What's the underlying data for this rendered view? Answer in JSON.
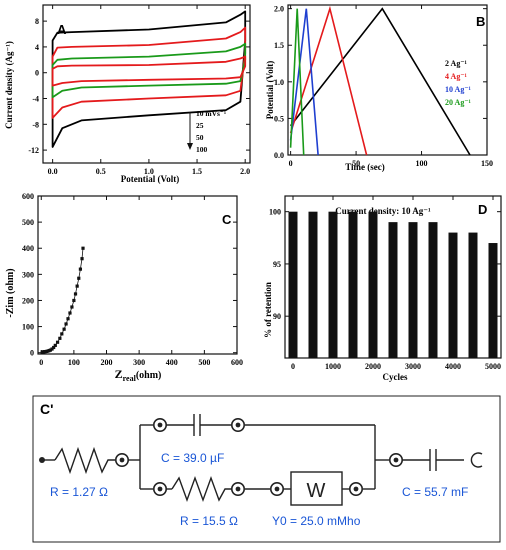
{
  "chart_data": [
    {
      "panel": "A",
      "type": "line",
      "xlabel": "Potential (Volt)",
      "ylabel": "Current density (Ag⁻¹)",
      "xlim": [
        -0.1,
        2.05
      ],
      "ylim": [
        -14,
        10.5
      ],
      "xticks": [
        "0.0",
        "0.5",
        "1.0",
        "1.5",
        "2.0"
      ],
      "xtick_values": [
        0,
        0.5,
        1.0,
        1.5,
        2.0
      ],
      "yticks": [
        "8",
        "4",
        "0",
        "-4",
        "-8",
        "-12"
      ],
      "ytick_values": [
        8,
        4,
        0,
        -4,
        -8,
        -12
      ],
      "legend_title": "10 mVs⁻¹",
      "legend": [
        "10 mVs⁻¹",
        "25",
        "50",
        "100"
      ],
      "series": [
        {
          "name": "100",
          "color": "#000000",
          "upper": [
            [
              0,
              5.0
            ],
            [
              0.05,
              6.2
            ],
            [
              0.2,
              6.3
            ],
            [
              1.0,
              6.7
            ],
            [
              1.8,
              7.8
            ],
            [
              1.95,
              9.0
            ],
            [
              2.0,
              9.5
            ]
          ],
          "lower": [
            [
              2.0,
              5.0
            ],
            [
              1.95,
              -4.5
            ],
            [
              1.8,
              -5.8
            ],
            [
              1.0,
              -6.6
            ],
            [
              0.3,
              -7.4
            ],
            [
              0.1,
              -8.6
            ],
            [
              0.0,
              -11.5
            ]
          ]
        },
        {
          "name": "50",
          "color": "#e41a1c",
          "upper": [
            [
              0,
              2.5
            ],
            [
              0.05,
              3.9
            ],
            [
              0.2,
              4.0
            ],
            [
              1.0,
              4.3
            ],
            [
              1.8,
              5.3
            ],
            [
              1.95,
              6.3
            ],
            [
              2.0,
              7.0
            ]
          ],
          "lower": [
            [
              2.0,
              3.0
            ],
            [
              1.95,
              -2.8
            ],
            [
              1.8,
              -3.5
            ],
            [
              1.0,
              -4.0
            ],
            [
              0.3,
              -4.5
            ],
            [
              0.1,
              -5.4
            ],
            [
              0.0,
              -7.0
            ]
          ]
        },
        {
          "name": "25",
          "color": "#1a9a1a",
          "upper": [
            [
              0,
              1.2
            ],
            [
              0.05,
              2.0
            ],
            [
              0.2,
              2.2
            ],
            [
              1.0,
              2.5
            ],
            [
              1.8,
              3.3
            ],
            [
              1.95,
              4.0
            ],
            [
              2.0,
              4.5
            ]
          ],
          "lower": [
            [
              2.0,
              2.0
            ],
            [
              1.95,
              -1.3
            ],
            [
              1.8,
              -1.7
            ],
            [
              1.0,
              -2.0
            ],
            [
              0.3,
              -2.3
            ],
            [
              0.1,
              -2.8
            ],
            [
              0.0,
              -3.8
            ]
          ]
        },
        {
          "name": "10 mVs⁻¹",
          "color": "#e41a1c",
          "upper": [
            [
              0,
              0.6
            ],
            [
              0.05,
              1.0
            ],
            [
              0.2,
              1.1
            ],
            [
              1.0,
              1.2
            ],
            [
              1.8,
              1.7
            ],
            [
              1.95,
              2.2
            ],
            [
              2.0,
              2.5
            ]
          ],
          "lower": [
            [
              2.0,
              1.0
            ],
            [
              1.95,
              -0.7
            ],
            [
              1.8,
              -0.9
            ],
            [
              1.0,
              -1.1
            ],
            [
              0.3,
              -1.3
            ],
            [
              0.1,
              -1.6
            ],
            [
              0.0,
              -2.0
            ]
          ]
        }
      ]
    },
    {
      "panel": "B",
      "type": "line",
      "xlabel": "Time (sec)",
      "ylabel": "Potential (Volt)",
      "xlim": [
        -2,
        150
      ],
      "ylim": [
        0,
        2.05
      ],
      "xticks": [
        "0",
        "50",
        "100",
        "150"
      ],
      "xtick_values": [
        0,
        50,
        100,
        150
      ],
      "yticks": [
        "2.0",
        "1.5",
        "1.0",
        "0.5",
        "0.0"
      ],
      "ytick_values": [
        2.0,
        1.5,
        1.0,
        0.5,
        0.0
      ],
      "legend": [
        "2 Ag⁻¹",
        "4 Ag⁻¹",
        "10 Ag⁻¹",
        "20 Ag⁻¹"
      ],
      "series": [
        {
          "name": "2 Ag⁻¹",
          "color": "#000000",
          "points": [
            [
              0,
              0.4
            ],
            [
              70,
              2.0
            ],
            [
              137,
              0.0
            ]
          ]
        },
        {
          "name": "4 Ag⁻¹",
          "color": "#e41a1c",
          "points": [
            [
              0,
              0.3
            ],
            [
              30,
              2.0
            ],
            [
              58,
              0.0
            ]
          ]
        },
        {
          "name": "10 Ag⁻¹",
          "color": "#1f3fd0",
          "points": [
            [
              0,
              0.2
            ],
            [
              12,
              2.0
            ],
            [
              21,
              0.0
            ]
          ]
        },
        {
          "name": "20 Ag⁻¹",
          "color": "#1a9a1a",
          "points": [
            [
              0,
              0.1
            ],
            [
              5,
              2.0
            ],
            [
              10,
              0.0
            ]
          ]
        }
      ]
    },
    {
      "panel": "C",
      "type": "scatter",
      "xlabel": "Z",
      "xlabel_sub": "real",
      "xlabel_unit": "(ohm)",
      "ylabel": "-Zim (ohm)",
      "xlim": [
        -10,
        600
      ],
      "ylim": [
        -5,
        600
      ],
      "xticks": [
        "0",
        "100",
        "200",
        "300",
        "400",
        "500",
        "600"
      ],
      "xtick_values": [
        0,
        100,
        200,
        300,
        400,
        500,
        600
      ],
      "yticks": [
        "0",
        "100",
        "200",
        "300",
        "400",
        "500",
        "600"
      ],
      "ytick_values": [
        0,
        100,
        200,
        300,
        400,
        500,
        600
      ],
      "points": [
        [
          3,
          2
        ],
        [
          6,
          3
        ],
        [
          9,
          4
        ],
        [
          12,
          4
        ],
        [
          16,
          5
        ],
        [
          20,
          6
        ],
        [
          24,
          8
        ],
        [
          28,
          10
        ],
        [
          33,
          14
        ],
        [
          38,
          20
        ],
        [
          43,
          28
        ],
        [
          50,
          40
        ],
        [
          57,
          55
        ],
        [
          63,
          72
        ],
        [
          70,
          90
        ],
        [
          76,
          110
        ],
        [
          82,
          130
        ],
        [
          88,
          152
        ],
        [
          94,
          175
        ],
        [
          100,
          200
        ],
        [
          105,
          225
        ],
        [
          110,
          255
        ],
        [
          115,
          285
        ],
        [
          120,
          320
        ],
        [
          125,
          360
        ],
        [
          128,
          400
        ]
      ]
    },
    {
      "panel": "D",
      "type": "bar",
      "title": "Current density: 10 Ag⁻¹",
      "xlabel": "Cycles",
      "ylabel": "% of retention",
      "xlim": [
        -200,
        5200
      ],
      "ylim": [
        86,
        101.5
      ],
      "xticks": [
        "0",
        "1000",
        "2000",
        "3000",
        "4000",
        "5000"
      ],
      "xtick_values": [
        0,
        1000,
        2000,
        3000,
        4000,
        5000
      ],
      "yticks": [
        "100",
        "95",
        "90"
      ],
      "ytick_values": [
        100,
        95,
        90
      ],
      "x": [
        0,
        500,
        1000,
        1500,
        2000,
        2500,
        3000,
        3500,
        4000,
        4500,
        5000
      ],
      "values": [
        100,
        100,
        100,
        100,
        100,
        99,
        99,
        99,
        98,
        98,
        97
      ]
    }
  ],
  "panels": {
    "a": "A",
    "b": "B",
    "c": "C",
    "d": "D",
    "c_prime": "C'"
  },
  "circuit": {
    "labels": {
      "r1": "R = 1.27 Ω",
      "c1": "C = 39.0 µF",
      "r2": "R = 15.5 Ω",
      "w_symbol": "W",
      "y0": "Y0 = 25.0 mMho",
      "c2": "C = 55.7 mF"
    },
    "label_color": "#1a56d6"
  }
}
